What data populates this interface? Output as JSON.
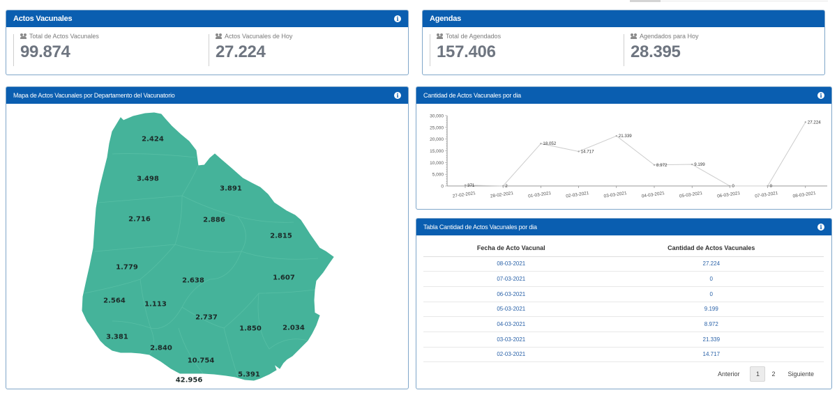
{
  "actos_vacunales": {
    "title": "Actos Vacunales",
    "stats": [
      {
        "label": "Total de Actos Vacunales",
        "value": "99.874"
      },
      {
        "label": "Actos Vacunales de Hoy",
        "value": "27.224"
      }
    ]
  },
  "agendas": {
    "title": "Agendas",
    "stats": [
      {
        "label": "Total de Agendados",
        "value": "157.406"
      },
      {
        "label": "Agendados para Hoy",
        "value": "28.395"
      }
    ]
  },
  "map": {
    "title": "Mapa de Actos Vacunales por Departamento del Vacunatorio",
    "fill_color": "#45b39a",
    "labels": [
      "2.424",
      "3.498",
      "3.891",
      "2.716",
      "2.886",
      "2.815",
      "1.779",
      "2.638",
      "1.607",
      "2.564",
      "1.113",
      "2.737",
      "1.850",
      "2.034",
      "3.381",
      "2.840",
      "10.754",
      "5.391",
      "42.956"
    ]
  },
  "chart_panel": {
    "title": "Cantidad de Actos Vacunales por dia"
  },
  "table_panel": {
    "title": "Tabla Cantidad de Actos Vacunales por dia",
    "columns": [
      "Fecha de Acto Vacunal",
      "Cantidad de Actos Vacunales"
    ],
    "rows": [
      [
        "08-03-2021",
        "27.224"
      ],
      [
        "07-03-2021",
        "0"
      ],
      [
        "06-03-2021",
        "0"
      ],
      [
        "05-03-2021",
        "9.199"
      ],
      [
        "04-03-2021",
        "8.972"
      ],
      [
        "03-03-2021",
        "21.339"
      ],
      [
        "02-03-2021",
        "14.717"
      ]
    ],
    "pagination": {
      "prev": "Anterior",
      "pages": [
        "1",
        "2"
      ],
      "current": "1",
      "next": "Siguiente"
    }
  },
  "colors": {
    "header": "#0a5eb0",
    "link": "#2a62a8",
    "line": "#cccccc"
  },
  "chart_data": {
    "type": "line",
    "title": "Cantidad de Actos Vacunales por dia",
    "xlabel": "",
    "ylabel": "",
    "categories": [
      "27-02-2021",
      "28-02-2021",
      "01-03-2021",
      "02-03-2021",
      "03-03-2021",
      "04-03-2021",
      "05-03-2021",
      "06-03-2021",
      "07-03-2021",
      "08-03-2021"
    ],
    "values": [
      371,
      2,
      18052,
      14717,
      21339,
      8972,
      9199,
      0,
      0,
      27224
    ],
    "value_labels": [
      "371",
      "2",
      "18.052",
      "14.717",
      "21.339",
      "8.972",
      "9.199",
      "0",
      "0",
      "27.224"
    ],
    "yticks": [
      0,
      5000,
      10000,
      15000,
      20000,
      25000,
      30000
    ],
    "ytick_labels": [
      "0",
      "5,000",
      "10,000",
      "15,000",
      "20,000",
      "25,000",
      "30,000"
    ],
    "ylim": [
      0,
      30000
    ],
    "grid": false,
    "legend": "none"
  }
}
